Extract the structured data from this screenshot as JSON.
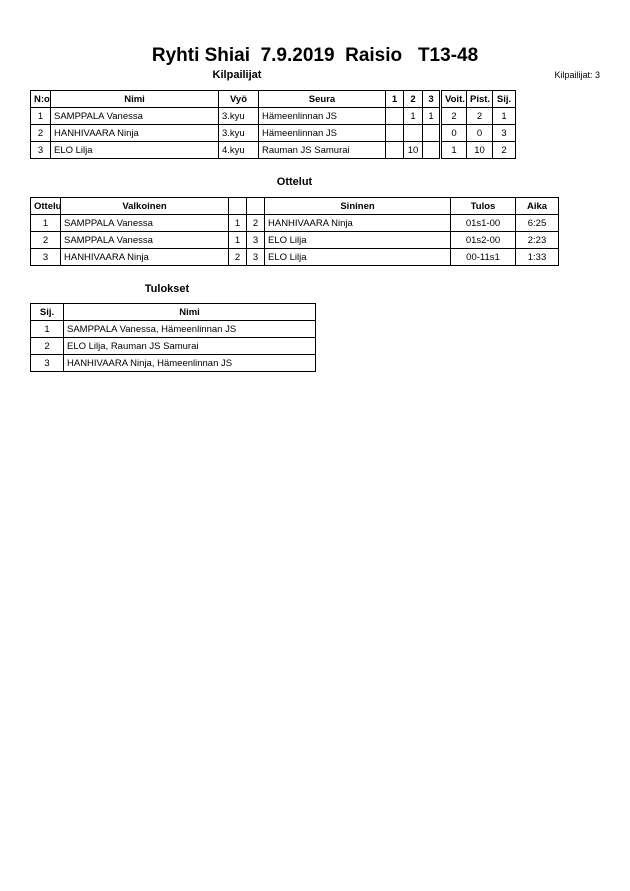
{
  "title": "Ryhti Shiai  7.9.2019  Raisio   T13-48",
  "competitors": {
    "title": "Kilpailijat",
    "count_label": "Kilpailijat: 3",
    "headers": [
      "N:o",
      "Nimi",
      "Vyö",
      "Seura",
      "1",
      "2",
      "3",
      "Voit.",
      "Pist.",
      "Sij."
    ],
    "rows": [
      [
        "1",
        "SAMPPALA Vanessa",
        "3.kyu",
        "Hämeenlinnan JS",
        null,
        "1",
        "1",
        "2",
        "2",
        "1"
      ],
      [
        "2",
        "HANHIVAARA Ninja",
        "3.kyu",
        "Hämeenlinnan JS",
        null,
        null,
        null,
        "0",
        "0",
        "3"
      ],
      [
        "3",
        "ELO Lilja",
        "4.kyu",
        "Rauman JS Samurai",
        null,
        "10",
        null,
        "1",
        "10",
        "2"
      ]
    ]
  },
  "matches": {
    "title": "Ottelut",
    "headers": [
      "Ottelu",
      "Valkoinen",
      null,
      null,
      "Sininen",
      "Tulos",
      "Aika"
    ],
    "rows": [
      [
        "1",
        "SAMPPALA Vanessa",
        "1",
        "2",
        "HANHIVAARA Ninja",
        "01s1-00",
        "6:25"
      ],
      [
        "2",
        "SAMPPALA Vanessa",
        "1",
        "3",
        "ELO Lilja",
        "01s2-00",
        "2:23"
      ],
      [
        "3",
        "HANHIVAARA Ninja",
        "2",
        "3",
        "ELO Lilja",
        "00-11s1",
        "1:33"
      ]
    ]
  },
  "results": {
    "title": "Tulokset",
    "headers": [
      "Sij.",
      "Nimi"
    ],
    "rows": [
      [
        "1",
        "SAMPPALA Vanessa, Hämeenlinnan JS"
      ],
      [
        "2",
        "ELO Lilja, Rauman JS Samurai"
      ],
      [
        "3",
        "HANHIVAARA Ninja, Hämeenlinnan JS"
      ]
    ]
  }
}
